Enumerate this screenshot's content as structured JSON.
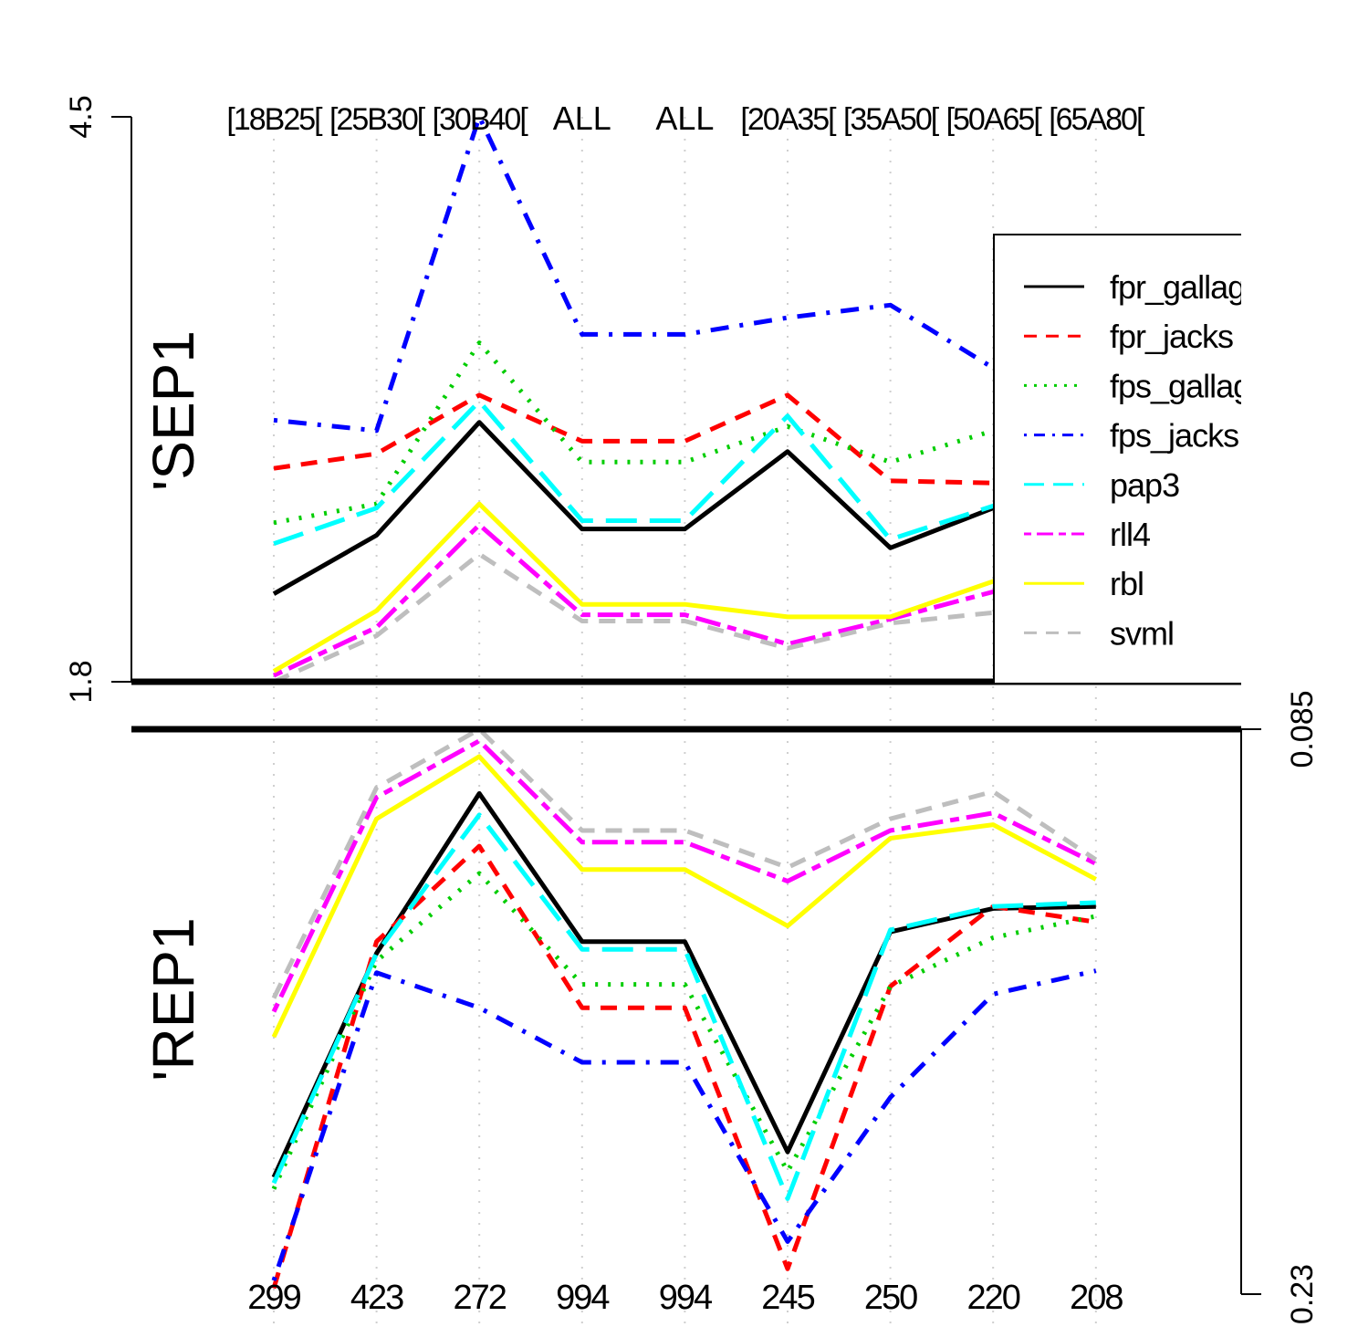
{
  "chart_data": {
    "type": "line",
    "categories_top": [
      "[18B25[",
      "[25B30[",
      "[30B40[",
      "ALL",
      "ALL",
      "[20A35[",
      "[35A50[",
      "[50A65[",
      "[65A80["
    ],
    "categories_bottom": [
      "299",
      "423",
      "272",
      "994",
      "994",
      "245",
      "250",
      "220",
      "208"
    ],
    "panels": [
      {
        "label": "'SEP1",
        "ylim": [
          1.8,
          4.5
        ],
        "y_ticks": [
          "1.8",
          "4.5"
        ],
        "axis_side": "left",
        "series": [
          {
            "name": "fpr_gallag",
            "color": "#000000",
            "dash": "solid",
            "values": [
              2.22,
              2.5,
              3.04,
              2.53,
              2.53,
              2.9,
              2.44,
              2.63,
              2.5
            ]
          },
          {
            "name": "fpr_jacks",
            "color": "#ff0000",
            "dash": "dashed",
            "values": [
              2.82,
              2.89,
              3.17,
              2.95,
              2.95,
              3.17,
              2.76,
              2.75,
              2.96
            ]
          },
          {
            "name": "fps_gallag",
            "color": "#00cd00",
            "dash": "dotted",
            "values": [
              2.56,
              2.65,
              3.42,
              2.85,
              2.85,
              3.02,
              2.85,
              3.0,
              2.8
            ]
          },
          {
            "name": "fps_jacks",
            "color": "#0000ff",
            "dash": "dotdash",
            "values": [
              3.05,
              3.0,
              4.5,
              3.46,
              3.46,
              3.54,
              3.6,
              3.3,
              3.17
            ]
          },
          {
            "name": "pap3",
            "color": "#00ffff",
            "dash": "longdash",
            "values": [
              2.46,
              2.63,
              3.14,
              2.57,
              2.57,
              3.07,
              2.48,
              2.64,
              2.48
            ]
          },
          {
            "name": "rll4",
            "color": "#ff00ff",
            "dash": "twodash",
            "values": [
              1.83,
              2.06,
              2.55,
              2.12,
              2.12,
              1.98,
              2.1,
              2.23,
              2.4
            ]
          },
          {
            "name": "rbl",
            "color": "#ffff00",
            "dash": "solid",
            "values": [
              1.85,
              2.14,
              2.65,
              2.17,
              2.17,
              2.11,
              2.11,
              2.28,
              2.36
            ]
          },
          {
            "name": "svml",
            "color": "#bebebe",
            "dash": "dashed",
            "values": [
              1.8,
              2.02,
              2.41,
              2.09,
              2.09,
              1.96,
              2.08,
              2.13,
              2.37
            ]
          }
        ]
      },
      {
        "label": "'REP1",
        "ylim": [
          0.085,
          0.23
        ],
        "y_ticks": [
          "0.085",
          "0.23"
        ],
        "axis_side": "right",
        "inverted": true,
        "series": [
          {
            "name": "fpr_gallag",
            "color": "#000000",
            "dash": "solid",
            "values": [
              0.2,
              0.1425,
              0.1015,
              0.1395,
              0.1395,
              0.1935,
              0.137,
              0.131,
              0.1305
            ]
          },
          {
            "name": "fpr_jacks",
            "color": "#ff0000",
            "dash": "dashed",
            "values": [
              0.2285,
              0.1395,
              0.115,
              0.1565,
              0.1565,
              0.2235,
              0.151,
              0.1305,
              0.1345
            ]
          },
          {
            "name": "fps_gallag",
            "color": "#00cd00",
            "dash": "dotted",
            "values": [
              0.203,
              0.1445,
              0.122,
              0.1505,
              0.1505,
              0.1985,
              0.151,
              0.1385,
              0.133
            ]
          },
          {
            "name": "fps_jacks",
            "color": "#0000ff",
            "dash": "dotdash",
            "values": [
              0.2265,
              0.1475,
              0.1565,
              0.1705,
              0.1705,
              0.2165,
              0.1795,
              0.153,
              0.147
            ]
          },
          {
            "name": "pap3",
            "color": "#00ffff",
            "dash": "longdash",
            "values": [
              0.2015,
              0.1425,
              0.107,
              0.1415,
              0.1415,
              0.2055,
              0.1365,
              0.1305,
              0.1295
            ]
          },
          {
            "name": "rll4",
            "color": "#ff00ff",
            "dash": "twodash",
            "values": [
              0.1575,
              0.1025,
              0.088,
              0.114,
              0.114,
              0.124,
              0.111,
              0.1065,
              0.1195
            ]
          },
          {
            "name": "rbl",
            "color": "#ffff00",
            "dash": "solid",
            "values": [
              0.164,
              0.108,
              0.092,
              0.121,
              0.121,
              0.1355,
              0.113,
              0.1095,
              0.1235
            ]
          },
          {
            "name": "svml",
            "color": "#bebebe",
            "dash": "dashed",
            "values": [
              0.154,
              0.1,
              0.085,
              0.111,
              0.111,
              0.1205,
              0.108,
              0.101,
              0.1185
            ]
          }
        ]
      }
    ],
    "legend": {
      "placement": "right",
      "entries": [
        "fpr_gallag",
        "fpr_jacks",
        "fps_gallag",
        "fps_jacks",
        "pap3",
        "rll4",
        "rbl",
        "svml"
      ]
    },
    "grid": "vertical dotted"
  }
}
